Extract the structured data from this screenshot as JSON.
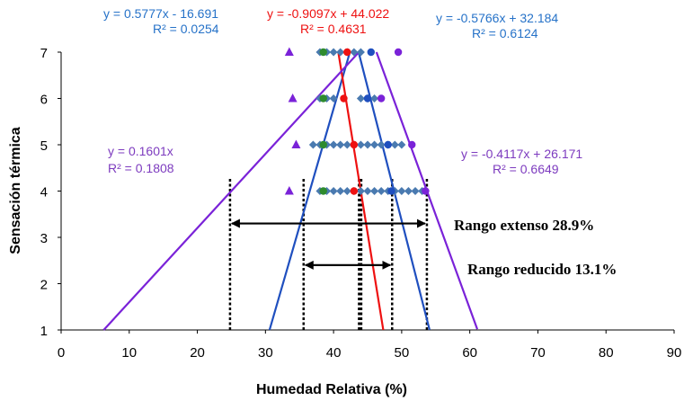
{
  "chart_data": {
    "type": "scatter",
    "xlabel": "Humedad Relativa (%)",
    "ylabel": "Sensación térmica",
    "xlim": [
      0,
      90
    ],
    "ylim": [
      1,
      7
    ],
    "xticks": [
      "0",
      "10",
      "20",
      "30",
      "40",
      "50",
      "60",
      "70",
      "80",
      "90"
    ],
    "yticks": [
      "1",
      "2",
      "3",
      "4",
      "5",
      "6",
      "7"
    ],
    "colors": {
      "blue_line": "#1f4fbf",
      "red_line": "#ee1111",
      "purple_line": "#7a22d8",
      "blue_text": "#2672c8",
      "red_text": "#ee1111",
      "purple_text": "#7d3bbf",
      "diamond": "#4a7ab0",
      "green_dot": "#2e8b2e"
    },
    "series": [
      {
        "marker": "diamond",
        "color": "#4a7ab0",
        "points": [
          [
            38,
            7
          ],
          [
            39,
            7
          ],
          [
            40,
            7
          ],
          [
            41,
            7
          ],
          [
            42,
            7
          ],
          [
            43,
            7
          ],
          [
            44,
            7
          ],
          [
            38,
            6
          ],
          [
            39,
            6
          ],
          [
            40,
            6
          ],
          [
            44,
            6
          ],
          [
            45,
            6
          ],
          [
            46,
            6
          ],
          [
            37,
            5
          ],
          [
            38,
            5
          ],
          [
            39,
            5
          ],
          [
            40,
            5
          ],
          [
            41,
            5
          ],
          [
            42,
            5
          ],
          [
            43,
            5
          ],
          [
            44,
            5
          ],
          [
            45,
            5
          ],
          [
            46,
            5
          ],
          [
            47,
            5
          ],
          [
            48,
            5
          ],
          [
            49,
            5
          ],
          [
            50,
            5
          ],
          [
            38,
            4
          ],
          [
            39,
            4
          ],
          [
            40,
            4
          ],
          [
            41,
            4
          ],
          [
            42,
            4
          ],
          [
            43,
            4
          ],
          [
            44,
            4
          ],
          [
            45,
            4
          ],
          [
            46,
            4
          ],
          [
            47,
            4
          ],
          [
            48,
            4
          ],
          [
            49,
            4
          ],
          [
            50,
            4
          ],
          [
            51,
            4
          ],
          [
            52,
            4
          ],
          [
            53,
            4
          ]
        ]
      },
      {
        "marker": "circle",
        "color": "#2e8b2e",
        "points": [
          [
            38.5,
            7
          ],
          [
            38.5,
            6
          ],
          [
            38.5,
            5
          ],
          [
            38.5,
            4
          ]
        ]
      },
      {
        "marker": "circle",
        "color": "#ee1111",
        "points": [
          [
            42,
            7
          ],
          [
            41.5,
            6
          ],
          [
            43,
            5
          ],
          [
            43,
            4
          ]
        ]
      },
      {
        "marker": "circle",
        "color": "#1f4fbf",
        "points": [
          [
            45.5,
            7
          ],
          [
            45,
            6
          ],
          [
            48,
            5
          ],
          [
            48.5,
            4
          ]
        ]
      },
      {
        "marker": "circle",
        "color": "#7a22d8",
        "points": [
          [
            49.5,
            7
          ],
          [
            47,
            6
          ],
          [
            51.5,
            5
          ],
          [
            53.5,
            4
          ]
        ]
      },
      {
        "marker": "triangle",
        "color": "#7a22d8",
        "points": [
          [
            33.5,
            7
          ],
          [
            34,
            6
          ],
          [
            34.5,
            5
          ],
          [
            33.5,
            4
          ]
        ]
      }
    ],
    "trend_lines": [
      {
        "id": "blue-left",
        "color": "#1f4fbf",
        "x_from": 30.6,
        "x_to": 42.4,
        "slope": 0.5777,
        "intercept": -16.691,
        "equation": "y = 0.5777x - 16.691",
        "r2": "R² = 0.0254",
        "text_color": "#2672c8"
      },
      {
        "id": "blue-right",
        "color": "#1f4fbf",
        "x_from": 43.7,
        "x_to": 54.1,
        "slope": -0.5766,
        "intercept": 32.184,
        "equation": "y = -0.5766x + 32.184",
        "r2": "R² = 0.6124",
        "text_color": "#2672c8"
      },
      {
        "id": "red",
        "color": "#ee1111",
        "x_from": 40.7,
        "x_to": 47.3,
        "slope": -0.9097,
        "intercept": 44.022,
        "equation": "y = -0.9097x + 44.022",
        "r2": "R² = 0.4631",
        "text_color": "#ee1111"
      },
      {
        "id": "purple-left",
        "color": "#7a22d8",
        "x_from": 6.25,
        "x_to": 43.7,
        "slope": 0.1601,
        "intercept": 0,
        "equation": "y = 0.1601x",
        "r2": "R² = 0.1808",
        "text_color": "#7d3bbf"
      },
      {
        "id": "purple-right",
        "color": "#7a22d8",
        "x_from": 46.3,
        "x_to": 61.1,
        "slope": -0.4117,
        "intercept": 26.171,
        "equation": "y = -0.4117x + 26.171",
        "r2": "R² = 0.6649",
        "text_color": "#7d3bbf"
      }
    ],
    "vertical_lines": [
      {
        "x": 24.8,
        "y_to": 4.3,
        "width": 2.5
      },
      {
        "x": 35.6,
        "y_to": 4.3,
        "width": 2.5
      },
      {
        "x": 43.9,
        "y_to": 4.3,
        "width": 5
      },
      {
        "x": 48.6,
        "y_to": 4.3,
        "width": 2.5
      },
      {
        "x": 53.7,
        "y_to": 4.3,
        "width": 2.5
      }
    ],
    "ranges": [
      {
        "name": "extenso",
        "x_from": 24.8,
        "x_to": 53.7,
        "y": 3.3,
        "label": "Rango extenso 28.9%"
      },
      {
        "name": "reducido",
        "x_from": 35.6,
        "x_to": 48.6,
        "y": 2.4,
        "label": "Rango reducido 13.1%"
      }
    ]
  }
}
